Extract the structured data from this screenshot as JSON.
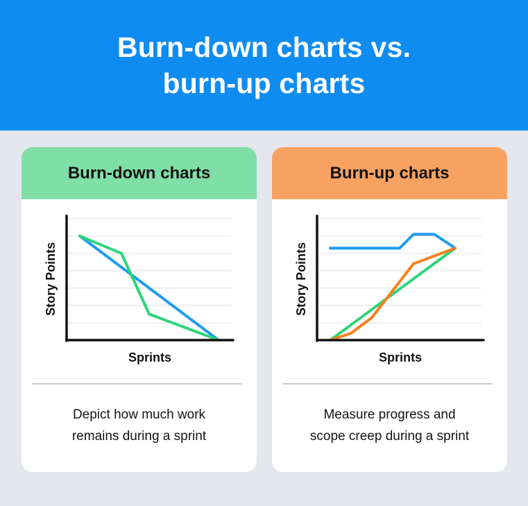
{
  "header": {
    "title_line1": "Burn-down charts vs.",
    "title_line2": "burn-up charts"
  },
  "colors": {
    "header_bg": "#0f8cf1",
    "burndown_band": "#7fdfa7",
    "burnup_band": "#f7a261",
    "blue": "#1e9bf0",
    "green": "#2ed47a",
    "orange": "#f5801f"
  },
  "cards": [
    {
      "title": "Burn-down charts",
      "desc_line1": "Depict how much work",
      "desc_line2": "remains during a sprint",
      "chart": {
        "xlabel": "Sprints",
        "ylabel": "Story Points"
      }
    },
    {
      "title": "Burn-up charts",
      "desc_line1": "Measure progress and",
      "desc_line2": "scope creep during a sprint",
      "chart": {
        "xlabel": "Sprints",
        "ylabel": "Story Points"
      }
    }
  ],
  "chart_data": [
    {
      "type": "line",
      "title": "Burn-down charts",
      "xlabel": "Sprints",
      "ylabel": "Story Points",
      "xlim": [
        0,
        10
      ],
      "ylim": [
        0,
        7
      ],
      "grid": true,
      "series": [
        {
          "color": "#1e9bf0",
          "x": [
            0,
            10
          ],
          "y": [
            6,
            0
          ]
        },
        {
          "color": "#2ed47a",
          "x": [
            0,
            3,
            5,
            10
          ],
          "y": [
            6,
            5,
            1.5,
            0
          ]
        }
      ]
    },
    {
      "type": "line",
      "title": "Burn-up charts",
      "xlabel": "Sprints",
      "ylabel": "Story Points",
      "xlim": [
        0,
        10
      ],
      "ylim": [
        0,
        7
      ],
      "grid": true,
      "series": [
        {
          "color": "#1e9bf0",
          "x": [
            0,
            5,
            6,
            7.5,
            9
          ],
          "y": [
            5.3,
            5.3,
            6.1,
            6.1,
            5.3
          ]
        },
        {
          "color": "#2ed47a",
          "x": [
            0,
            9
          ],
          "y": [
            0,
            5.3
          ]
        },
        {
          "color": "#f5801f",
          "x": [
            0,
            1.5,
            3,
            6,
            9
          ],
          "y": [
            0,
            0.4,
            1.3,
            4.4,
            5.3
          ]
        }
      ]
    }
  ]
}
